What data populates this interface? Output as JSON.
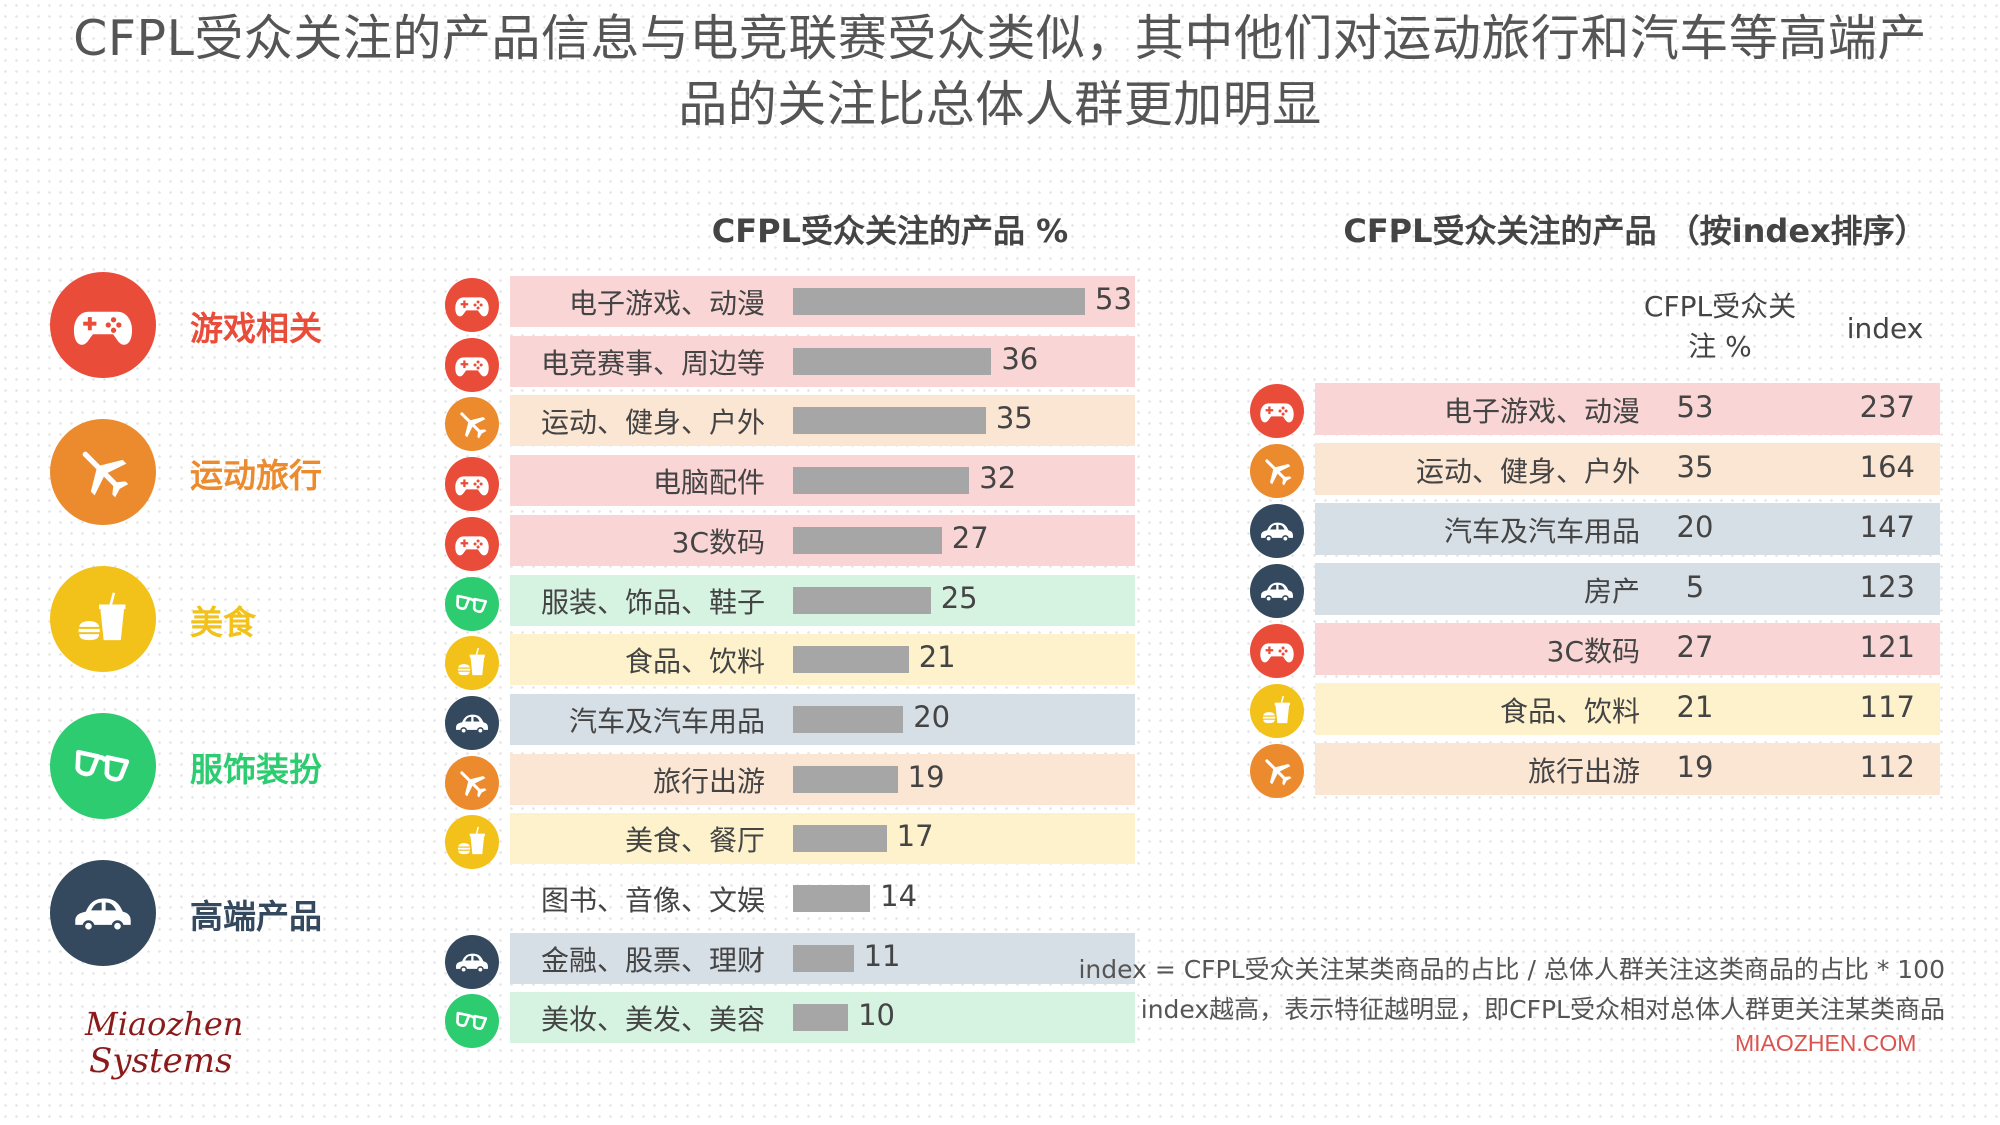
{
  "title_line1": "CFPL受众关注的产品信息与电竞联赛受众类似，其中他们对运动旅行和汽车等高端产",
  "title_line2": "品的关注比总体人群更加明显",
  "colors": {
    "games": "#ea4c3a",
    "sports": "#ec8b2d",
    "food": "#f2c21b",
    "fashion": "#2ecc71",
    "premium": "#34495e",
    "band_games": "#f9d6d5",
    "band_sports": "#fbe5d3",
    "band_food": "#fdf2cc",
    "band_fashion": "#d6f3e2",
    "band_premium": "#d6dee6",
    "bar": "#a6a6a6"
  },
  "legend": [
    {
      "key": "games",
      "label": "游戏相关",
      "icon": "gamepad-icon"
    },
    {
      "key": "sports",
      "label": "运动旅行",
      "icon": "airplane-icon"
    },
    {
      "key": "food",
      "label": "美食",
      "icon": "fastfood-icon"
    },
    {
      "key": "fashion",
      "label": "服饰装扮",
      "icon": "sunglasses-icon"
    },
    {
      "key": "premium",
      "label": "高端产品",
      "icon": "car-icon"
    }
  ],
  "chart_data": [
    {
      "type": "bar",
      "orientation": "horizontal",
      "title": "CFPL受众关注的产品 %",
      "categories": [
        "电子游戏、动漫",
        "电竞赛事、周边等",
        "运动、健身、户外",
        "电脑配件",
        "3C数码",
        "服装、饰品、鞋子",
        "食品、饮料",
        "汽车及汽车用品",
        "旅行出游",
        "美食、餐厅",
        "图书、音像、文娱",
        "金融、股票、理财",
        "美妆、美发、美容"
      ],
      "values": [
        53,
        36,
        35,
        32,
        27,
        25,
        21,
        20,
        19,
        17,
        14,
        11,
        10
      ],
      "groups": [
        "games",
        "games",
        "sports",
        "games",
        "games",
        "fashion",
        "food",
        "premium",
        "sports",
        "food",
        "",
        "premium",
        "fashion"
      ],
      "xlim": [
        0,
        53
      ]
    },
    {
      "type": "table",
      "title": "CFPL受众关注的产品 （按index排序）",
      "columns": [
        "CFPL受众关注 %",
        "index"
      ],
      "col_pct_line1": "CFPL受众关",
      "col_pct_line2": "注 %",
      "rows": [
        {
          "name": "电子游戏、动漫",
          "pct": "53",
          "index": "237",
          "group": "games"
        },
        {
          "name": "运动、健身、户外",
          "pct": "35",
          "index": "164",
          "group": "sports"
        },
        {
          "name": "汽车及汽车用品",
          "pct": "20",
          "index": "147",
          "group": "premium"
        },
        {
          "name": "房产",
          "pct": "5",
          "index": "123",
          "group": "premium"
        },
        {
          "name": "3C数码",
          "pct": "27",
          "index": "121",
          "group": "games"
        },
        {
          "name": "食品、饮料",
          "pct": "21",
          "index": "117",
          "group": "food"
        },
        {
          "name": "旅行出游",
          "pct": "19",
          "index": "112",
          "group": "sports"
        }
      ]
    }
  ],
  "notes": {
    "line1": "index = CFPL受众关注某类商品的占比 / 总体人群关注这类商品的占比 * 100",
    "line2": "index越高，表示特征越明显，即CFPL受众相对总体人群更关注某类商品"
  },
  "brand_url": "MIAOZHEN.COM",
  "logo_text_1": "Miaozhen",
  "logo_text_2": "Systems"
}
